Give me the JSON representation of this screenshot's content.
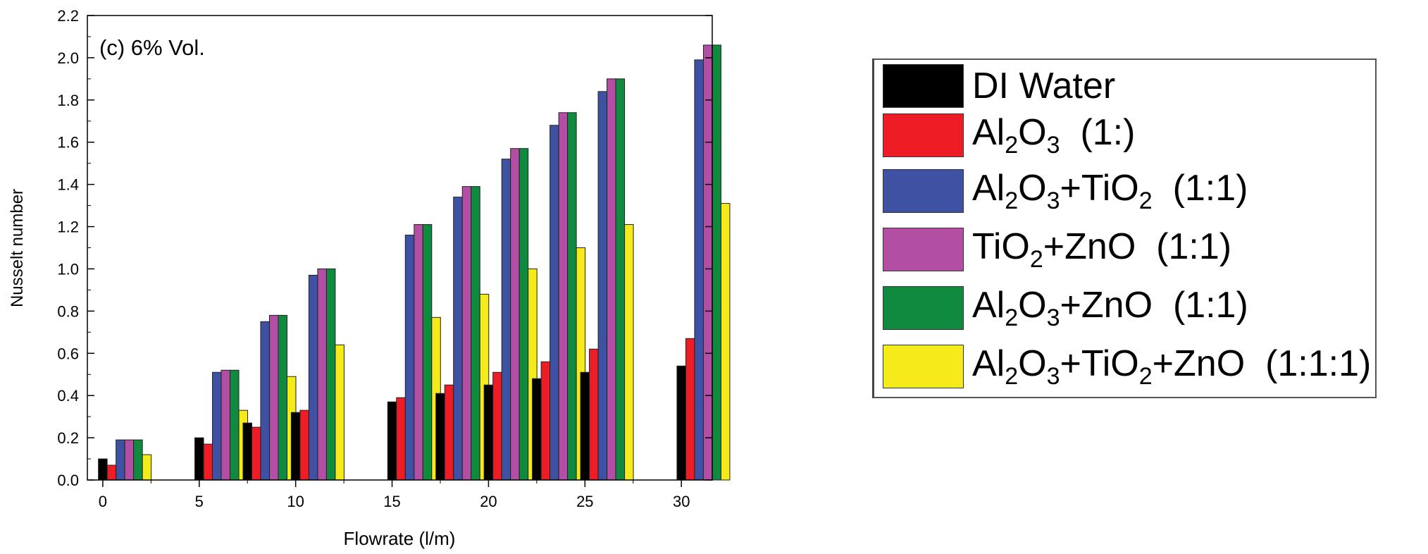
{
  "chart_data": {
    "type": "bar",
    "annotation": "(c) 6% Vol.",
    "xlabel": "Flowrate (l/m)",
    "ylabel": "Nusselt number",
    "ylim": [
      0,
      2.2
    ],
    "yticks": [
      0.0,
      0.2,
      0.4,
      0.6,
      0.8,
      1.0,
      1.2,
      1.4,
      1.6,
      1.8,
      2.0,
      2.2
    ],
    "ytick_labels": [
      "0.0",
      "0.2",
      "0.4",
      "0.6",
      "0.8",
      "1.0",
      "1.2",
      "1.4",
      "1.6",
      "1.8",
      "2.0",
      "2.2"
    ],
    "xlim": [
      -0.8,
      31.6
    ],
    "xticks": [
      0,
      5,
      10,
      15,
      20,
      25,
      30
    ],
    "xtick_labels": [
      "0",
      "5",
      "10",
      "15",
      "20",
      "25",
      "30"
    ],
    "x": [
      0,
      5,
      7.5,
      10,
      15,
      17.5,
      20,
      22.5,
      25,
      30
    ],
    "legend_position": "right-outside",
    "series": [
      {
        "name": "DI Water",
        "color": "#000000",
        "values": [
          0.1,
          0.2,
          0.27,
          0.32,
          0.37,
          0.41,
          0.45,
          0.48,
          0.51,
          0.54
        ]
      },
      {
        "name": "Al2O3 (1:)",
        "color": "#ee1c24",
        "values": [
          0.07,
          0.17,
          0.25,
          0.33,
          0.39,
          0.45,
          0.51,
          0.56,
          0.62,
          0.67
        ]
      },
      {
        "name": "Al2O3+TiO2 (1:1)",
        "color": "#3f51a3",
        "values": [
          0.19,
          0.51,
          0.75,
          0.97,
          1.16,
          1.34,
          1.52,
          1.68,
          1.84,
          1.99
        ]
      },
      {
        "name": "TiO2+ZnO (1:1)",
        "color": "#b24fa4",
        "values": [
          0.19,
          0.52,
          0.78,
          1.0,
          1.21,
          1.39,
          1.57,
          1.74,
          1.9,
          2.06
        ]
      },
      {
        "name": "Al2O3+ZnO (1:1)",
        "color": "#108a3e",
        "values": [
          0.19,
          0.52,
          0.78,
          1.0,
          1.21,
          1.39,
          1.57,
          1.74,
          1.9,
          2.06
        ]
      },
      {
        "name": "Al2O3+TiO2+ZnO (1:1:1)",
        "color": "#f5eb1a",
        "values": [
          0.12,
          0.33,
          0.49,
          0.64,
          0.77,
          0.88,
          1.0,
          1.1,
          1.21,
          1.31
        ]
      }
    ]
  }
}
